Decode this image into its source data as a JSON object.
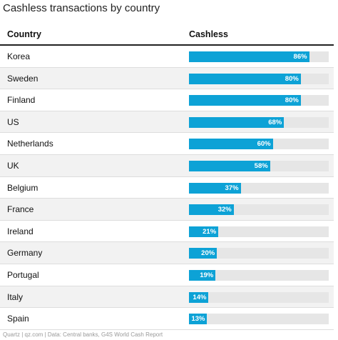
{
  "chart_data": {
    "type": "bar",
    "title": "Cashless transactions by country",
    "column_headers": [
      "Country",
      "Cashless"
    ],
    "categories": [
      "Korea",
      "Sweden",
      "Finland",
      "US",
      "Netherlands",
      "UK",
      "Belgium",
      "France",
      "Ireland",
      "Germany",
      "Portugal",
      "Italy",
      "Spain"
    ],
    "values": [
      86,
      80,
      80,
      68,
      60,
      58,
      37,
      32,
      21,
      20,
      19,
      14,
      13
    ],
    "value_labels": [
      "86%",
      "80%",
      "80%",
      "68%",
      "60%",
      "58%",
      "37%",
      "32%",
      "21%",
      "20%",
      "19%",
      "14%",
      "13%"
    ],
    "xlim": [
      0,
      100
    ],
    "bar_color": "#0da2d6",
    "track_color": "#e6e6e6",
    "footer": "Quartz | qz.com | Data: Central banks, G4S World Cash Report"
  }
}
